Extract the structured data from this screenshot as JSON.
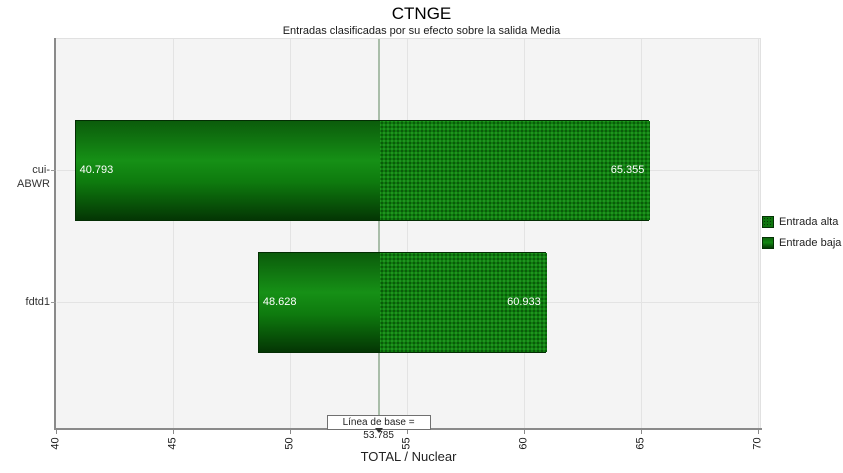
{
  "chart_data": {
    "type": "bar",
    "variant": "tornado-sensitivity",
    "title": "CTNGE",
    "subtitle": "Entradas clasificadas por su efecto sobre la salida Media",
    "xlabel": "TOTAL / Nuclear",
    "xlim": [
      40,
      70
    ],
    "xticks": [
      40,
      45,
      50,
      55,
      60,
      65,
      70
    ],
    "grid": true,
    "legend_position": "right",
    "categories": [
      "cui-ABWR",
      "fdtd1"
    ],
    "series": [
      {
        "name": "Entrada alta",
        "values": [
          65.355,
          60.933
        ]
      },
      {
        "name": "Entrade baja",
        "values": [
          40.793,
          48.628
        ]
      }
    ],
    "value_labels": {
      "low": [
        "40.793",
        "48.628"
      ],
      "high": [
        "65.355",
        "60.933"
      ]
    },
    "baseline": {
      "value": 53.785,
      "label": "Línea de base = 53.785"
    },
    "legend": {
      "items": [
        {
          "label": "Entrada alta",
          "swatch": "pattern-green"
        },
        {
          "label": "Entrade baja",
          "swatch": "gradient-green"
        }
      ]
    },
    "colors": {
      "bar_green_dark": "#053a05",
      "bar_green": "#0f7e0f",
      "bar_green_bright": "#2ba02b",
      "baseline_line": "#a9bda9",
      "plot_background": "#f4f4f4",
      "axis": "#8a8a8a",
      "gridline": "#e3e3e3",
      "value_text": "#ffffff"
    }
  }
}
